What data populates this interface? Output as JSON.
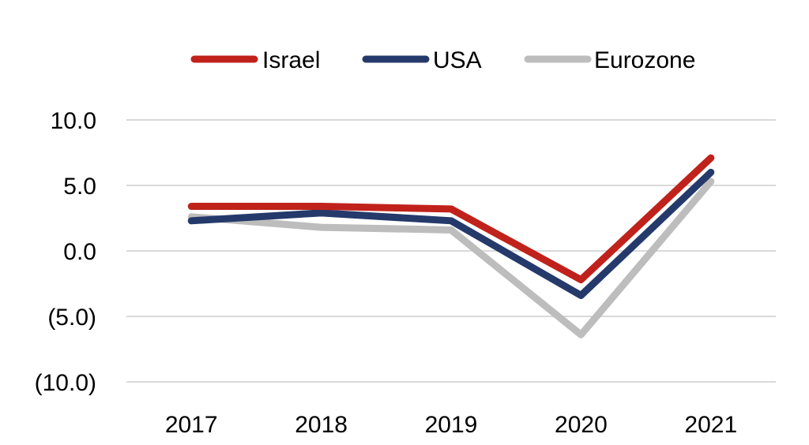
{
  "chart_data": {
    "type": "line",
    "title": "",
    "xlabel": "",
    "ylabel": "",
    "categories": [
      "2017",
      "2018",
      "2019",
      "2020",
      "2021"
    ],
    "ylim": [
      -10,
      10
    ],
    "yticks": [
      10,
      5,
      0,
      -5,
      -10
    ],
    "ytick_labels": [
      "10.0",
      "5.0",
      "0.0",
      "(5.0)",
      "(10.0)"
    ],
    "grid": true,
    "legend_position": "top",
    "series": [
      {
        "name": "Israel",
        "color": "#C0221B",
        "values": [
          3.4,
          3.4,
          3.2,
          -2.2,
          7.1
        ]
      },
      {
        "name": "USA",
        "color": "#253A6B",
        "values": [
          2.3,
          2.9,
          2.3,
          -3.4,
          6.0
        ]
      },
      {
        "name": "Eurozone",
        "color": "#BDBDBD",
        "values": [
          2.6,
          1.8,
          1.6,
          -6.4,
          5.3
        ]
      }
    ]
  }
}
